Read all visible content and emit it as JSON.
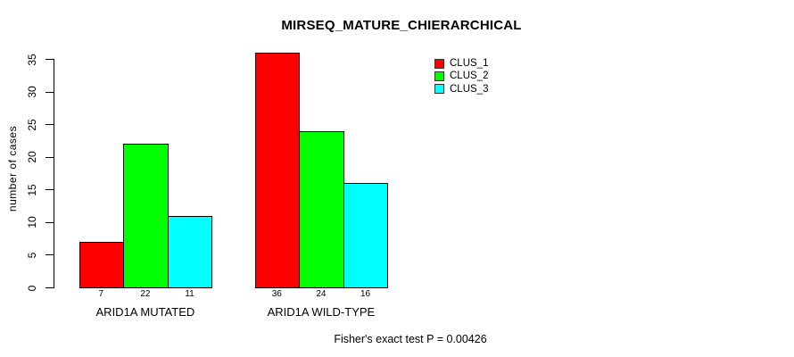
{
  "title": "MIRSEQ_MATURE_CHIERARCHICAL",
  "footer": "Fisher's exact test P = 0.00426",
  "y_axis": {
    "label": "number of cases"
  },
  "legend": {
    "items": [
      {
        "label": "CLUS_1",
        "color": "#FF0000"
      },
      {
        "label": "CLUS_2",
        "color": "#00FF00"
      },
      {
        "label": "CLUS_3",
        "color": "#00FFFF"
      }
    ]
  },
  "chart_data": {
    "type": "bar",
    "title": "MIRSEQ_MATURE_CHIERARCHICAL",
    "xlabel": "",
    "ylabel": "number of cases",
    "categories": [
      "ARID1A MUTATED",
      "ARID1A WILD-TYPE"
    ],
    "series": [
      {
        "name": "CLUS_1",
        "color": "#FF0000",
        "values": [
          7,
          36
        ]
      },
      {
        "name": "CLUS_2",
        "color": "#00FF00",
        "values": [
          22,
          24
        ]
      },
      {
        "name": "CLUS_3",
        "color": "#00FFFF",
        "values": [
          11,
          16
        ]
      }
    ],
    "bar_value_labels": [
      [
        7,
        22,
        11
      ],
      [
        36,
        24,
        16
      ]
    ],
    "yticks": [
      0,
      5,
      10,
      15,
      20,
      25,
      30,
      35
    ],
    "ylim": [
      0,
      36
    ],
    "grid": false,
    "legend_position": "top-right",
    "annotation": "Fisher's exact test P = 0.00426"
  }
}
